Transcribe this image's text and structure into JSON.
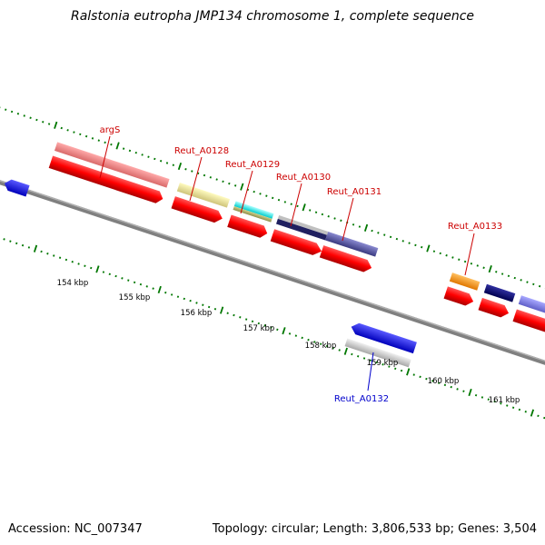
{
  "title": "Ralstonia eutropha JMP134 chromosome 1, complete sequence",
  "accession": "Accession: NC_007347",
  "summary": "Topology: circular; Length: 3,806,533 bp; Genes: 3,504",
  "kbp_labels": [
    "154 kbp",
    "155 kbp",
    "156 kbp",
    "157 kbp",
    "158 kbp",
    "159 kbp",
    "160 kbp",
    "161 kbp"
  ],
  "gene_labels": {
    "argS": "argS",
    "reut_a0128": "Reut_A0128",
    "reut_a0129": "Reut_A0129",
    "reut_a0130": "Reut_A0130",
    "reut_a0131": "Reut_A0131",
    "reut_a0132": "Reut_A0132",
    "reut_a0133": "Reut_A0133"
  },
  "colors": {
    "cds": "#ff0000",
    "label_forward": "#cc0000",
    "label_reverse": "#0000cc",
    "backbone": "#808080",
    "tick": "#007700"
  }
}
